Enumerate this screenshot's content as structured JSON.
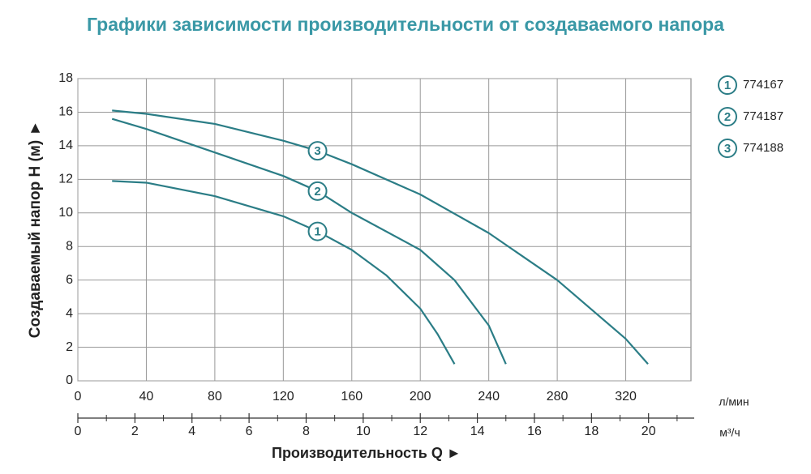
{
  "chart_data": {
    "type": "line",
    "title": "Графики зависимости производительности от создаваемого напора",
    "x_label": "Производительность Q ►",
    "y_label": "Создаваемый напор H (м) ►",
    "x_unit": "л/мин",
    "x2_unit": "м³/ч",
    "xlim": [
      0,
      360
    ],
    "xticks": [
      0,
      40,
      80,
      120,
      160,
      200,
      240,
      280,
      320
    ],
    "x2lim": [
      0,
      21.6
    ],
    "x2ticks": [
      0,
      2,
      4,
      6,
      8,
      10,
      12,
      14,
      16,
      18,
      20
    ],
    "x2minorticks": [
      1,
      3,
      5,
      7,
      9,
      11,
      13,
      15,
      17,
      19,
      21
    ],
    "ylim": [
      0,
      18
    ],
    "yticks": [
      0,
      2,
      4,
      6,
      8,
      10,
      12,
      14,
      16,
      18
    ],
    "grid": true,
    "legend": "right",
    "series": [
      {
        "name": "774167",
        "label": "1",
        "color": "#2b7d86",
        "x": [
          20,
          40,
          80,
          120,
          140,
          160,
          180,
          200,
          210,
          220
        ],
        "values": [
          11.9,
          11.8,
          11.0,
          9.8,
          8.9,
          7.8,
          6.3,
          4.3,
          2.8,
          1.0
        ]
      },
      {
        "name": "774187",
        "label": "2",
        "color": "#2b7d86",
        "x": [
          20,
          40,
          80,
          120,
          140,
          160,
          200,
          220,
          240,
          250
        ],
        "values": [
          15.6,
          15.0,
          13.6,
          12.2,
          11.3,
          10.0,
          7.8,
          6.0,
          3.3,
          1.0
        ]
      },
      {
        "name": "774188",
        "label": "3",
        "color": "#2b7d86",
        "x": [
          20,
          40,
          80,
          120,
          140,
          160,
          200,
          240,
          280,
          320,
          333
        ],
        "values": [
          16.1,
          15.9,
          15.3,
          14.3,
          13.7,
          12.9,
          11.1,
          8.8,
          6.0,
          2.5,
          1.0
        ]
      }
    ]
  }
}
